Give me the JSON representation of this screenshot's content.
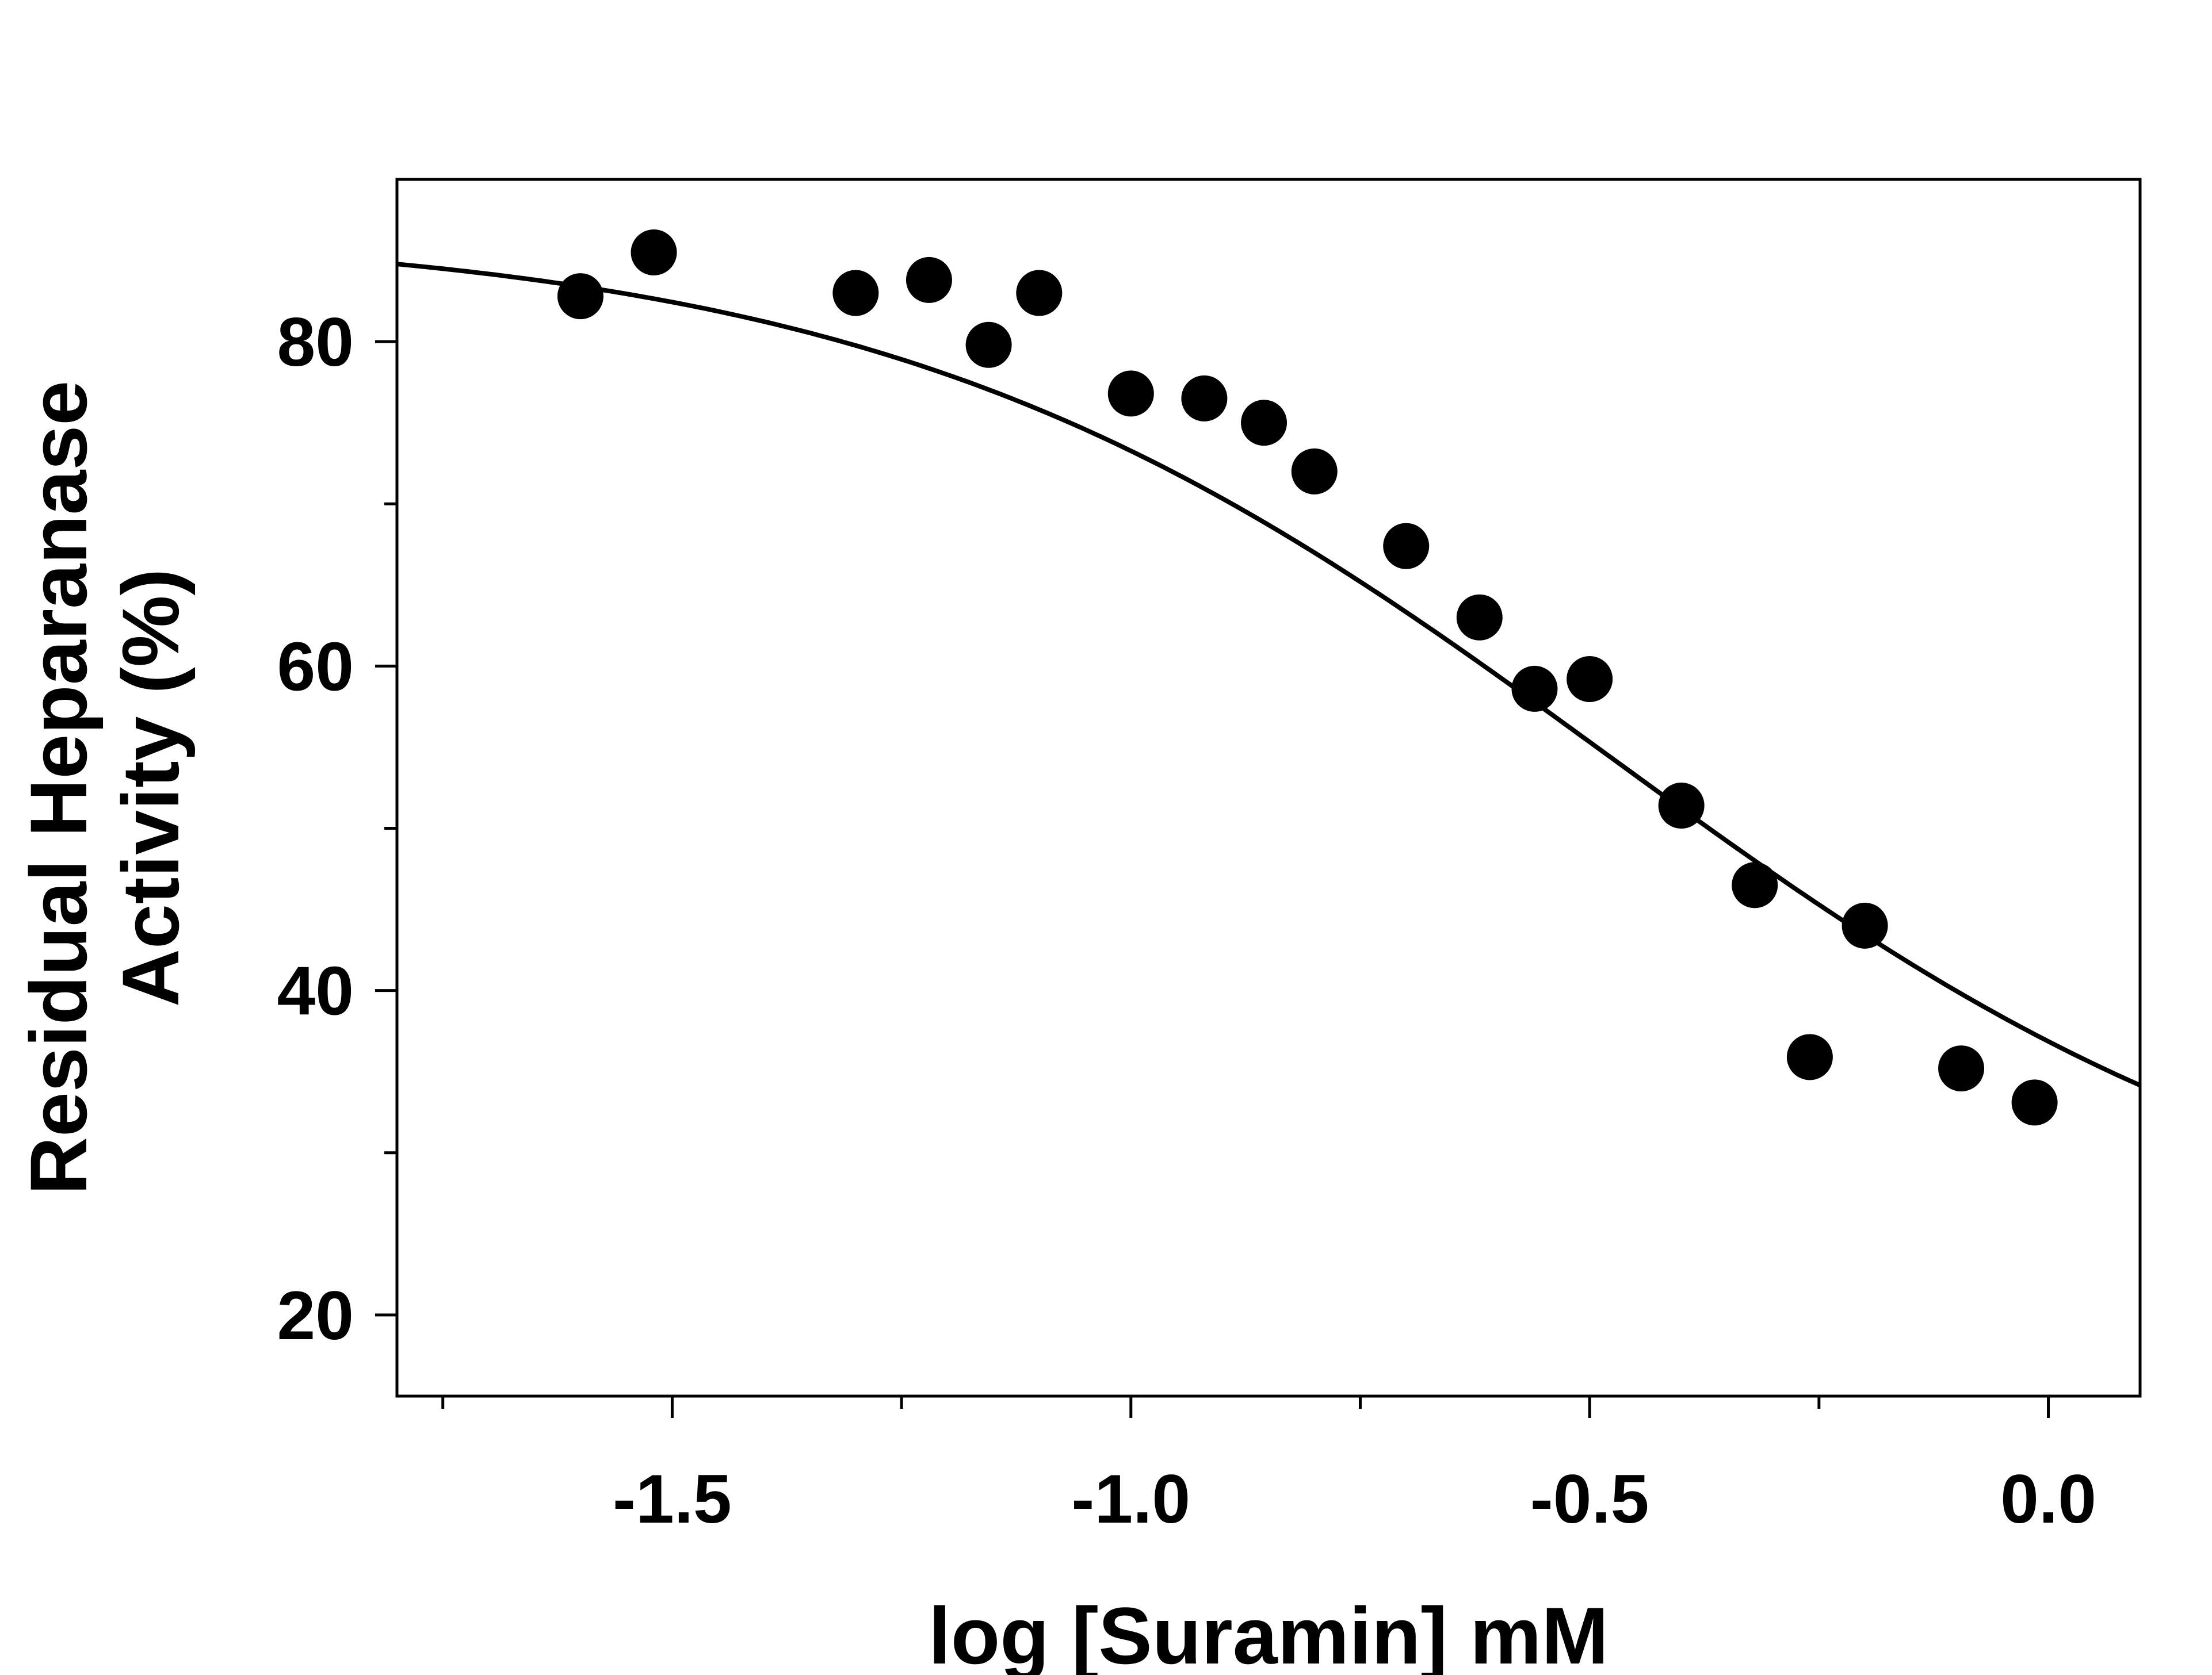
{
  "chart_data": {
    "type": "scatter",
    "title": "",
    "xlabel": "log [Suramin] mM",
    "ylabel_lines": [
      "Residual Heparanase",
      "Activity (%)"
    ],
    "xlim": [
      -1.8,
      0.1
    ],
    "ylim": [
      15,
      90
    ],
    "x_ticks": [
      -1.5,
      -1.0,
      -0.5,
      0.0
    ],
    "x_tick_labels": [
      "-1.5",
      "-1.0",
      "-0.5",
      "0.0"
    ],
    "x_minor_ticks": [
      -1.75,
      -1.25,
      -0.75,
      -0.25
    ],
    "y_ticks": [
      20,
      40,
      60,
      80
    ],
    "y_tick_labels": [
      "20",
      "40",
      "60",
      "80"
    ],
    "y_minor_ticks": [
      30,
      50,
      70
    ],
    "grid": false,
    "series": [
      {
        "kind": "points",
        "x": [
          -1.6,
          -1.52,
          -1.3,
          -1.22,
          -1.155,
          -1.1,
          -1.0,
          -0.92,
          -0.855,
          -0.8,
          -0.7,
          -0.62,
          -0.56,
          -0.5,
          -0.4,
          -0.32,
          -0.26,
          -0.2,
          -0.095,
          -0.015
        ],
        "y": [
          82.8,
          85.5,
          83,
          83.8,
          79.8,
          83,
          76.8,
          76.5,
          75,
          72,
          67.4,
          63,
          58.6,
          59.2,
          51.4,
          46.5,
          35.9,
          44,
          35.2,
          33.1
        ]
      },
      {
        "kind": "fit-curve",
        "model": "sigmoid",
        "top": 87,
        "bottom": 22,
        "logIC50": -0.48,
        "hill": 1.1
      }
    ],
    "colors": {
      "points": "#000000",
      "curve": "#000000",
      "axes": "#000000"
    }
  }
}
